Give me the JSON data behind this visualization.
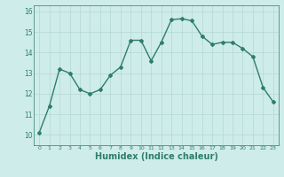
{
  "x": [
    0,
    1,
    2,
    3,
    4,
    5,
    6,
    7,
    8,
    9,
    10,
    11,
    12,
    13,
    14,
    15,
    16,
    17,
    18,
    19,
    20,
    21,
    22,
    23
  ],
  "y": [
    10.1,
    11.4,
    13.2,
    13.0,
    12.2,
    12.0,
    12.2,
    12.9,
    13.3,
    14.6,
    14.6,
    13.6,
    14.5,
    15.6,
    15.65,
    15.55,
    14.8,
    14.4,
    14.5,
    14.5,
    14.2,
    13.8,
    12.3,
    11.6
  ],
  "line_color": "#2e7d6e",
  "marker": "D",
  "marker_size": 2.0,
  "line_width": 1.0,
  "xlabel": "Humidex (Indice chaleur)",
  "xlabel_fontsize": 7,
  "bg_color": "#ceecea",
  "grid_color": "#b8dbd8",
  "tick_color": "#2e7d6e",
  "label_color": "#2e7d6e",
  "xlim": [
    -0.5,
    23.5
  ],
  "ylim": [
    9.5,
    16.3
  ],
  "yticks": [
    10,
    11,
    12,
    13,
    14,
    15,
    16
  ],
  "xticks": [
    0,
    1,
    2,
    3,
    4,
    5,
    6,
    7,
    8,
    9,
    10,
    11,
    12,
    13,
    14,
    15,
    16,
    17,
    18,
    19,
    20,
    21,
    22,
    23
  ]
}
